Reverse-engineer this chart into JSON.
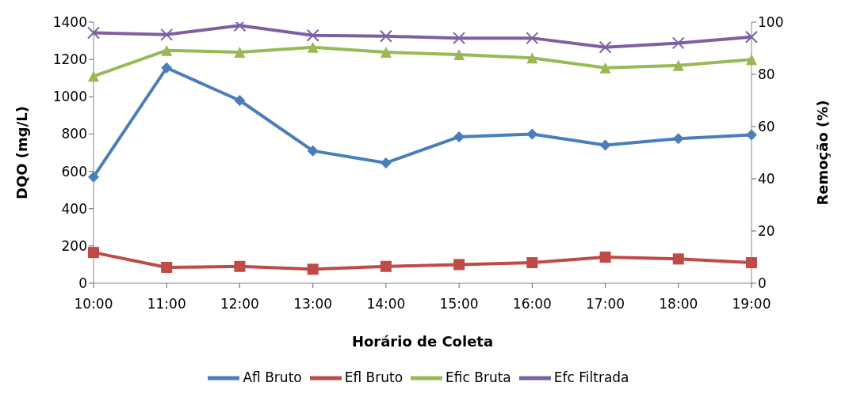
{
  "chart_data": {
    "type": "line",
    "xlabel": "Horário de Coleta",
    "ylabel": "DQO (mg/L)",
    "y2label": "Remoção (%)",
    "categories": [
      "10:00",
      "11:00",
      "12:00",
      "13:00",
      "14:00",
      "15:00",
      "16:00",
      "17:00",
      "18:00",
      "19:00"
    ],
    "series": [
      {
        "name": "Afl Bruto",
        "color": "#4a7ebb",
        "marker": "diamond",
        "values": [
          570,
          1155,
          980,
          710,
          645,
          785,
          800,
          740,
          775,
          795
        ]
      },
      {
        "name": "Efl Bruto",
        "color": "#be4b48",
        "marker": "square",
        "values": [
          165,
          85,
          90,
          75,
          90,
          100,
          110,
          140,
          130,
          110
        ]
      },
      {
        "name": "Efic Bruta",
        "color": "#98b954",
        "marker": "triangle",
        "axis": "y2",
        "values": [
          79.3,
          89.2,
          88.5,
          90.4,
          88.5,
          87.6,
          86.3,
          82.5,
          83.4,
          85.7
        ]
      },
      {
        "name": "Efc Filtrada",
        "color": "#7d60a0",
        "marker": "cross",
        "axis": "y2",
        "values": [
          95.9,
          95.2,
          98.7,
          94.9,
          94.6,
          93.9,
          93.9,
          90.4,
          92,
          94.3
        ]
      }
    ],
    "ylim": [
      0,
      1400
    ],
    "yticks": [
      0,
      200,
      400,
      600,
      800,
      1000,
      1200,
      1400
    ],
    "y2lim": [
      0,
      100
    ],
    "y2ticks": [
      0,
      20,
      40,
      60,
      80,
      100
    ],
    "grid": false,
    "legend": "bottom"
  }
}
